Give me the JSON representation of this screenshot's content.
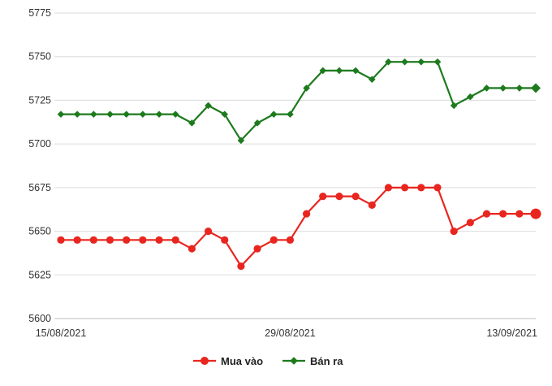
{
  "chart_data": {
    "type": "line",
    "x": [
      "15/08/2021",
      "16/08/2021",
      "17/08/2021",
      "18/08/2021",
      "19/08/2021",
      "20/08/2021",
      "21/08/2021",
      "22/08/2021",
      "23/08/2021",
      "24/08/2021",
      "25/08/2021",
      "26/08/2021",
      "27/08/2021",
      "28/08/2021",
      "29/08/2021",
      "30/08/2021",
      "31/08/2021",
      "01/09/2021",
      "02/09/2021",
      "03/09/2021",
      "04/09/2021",
      "05/09/2021",
      "06/09/2021",
      "07/09/2021",
      "08/09/2021",
      "09/09/2021",
      "10/09/2021",
      "11/09/2021",
      "12/09/2021",
      "13/09/2021"
    ],
    "x_tick_labels": [
      "15/08/2021",
      "29/08/2021",
      "13/09/2021"
    ],
    "y_ticks": [
      5600,
      5625,
      5650,
      5675,
      5700,
      5725,
      5750,
      5775
    ],
    "ylim": [
      5600,
      5775
    ],
    "grid": "horizontal",
    "legend_position": "bottom",
    "series": [
      {
        "name": "Mua vào",
        "color": "#e8261f",
        "marker": "circle",
        "values": [
          5645,
          5645,
          5645,
          5645,
          5645,
          5645,
          5645,
          5645,
          5640,
          5650,
          5645,
          5630,
          5640,
          5645,
          5645,
          5660,
          5670,
          5670,
          5670,
          5665,
          5675,
          5675,
          5675,
          5675,
          5650,
          5655,
          5660,
          5660,
          5660,
          5660
        ]
      },
      {
        "name": "Bán ra",
        "color": "#1d7a1d",
        "marker": "diamond",
        "values": [
          5717,
          5717,
          5717,
          5717,
          5717,
          5717,
          5717,
          5717,
          5712,
          5722,
          5717,
          5702,
          5712,
          5717,
          5717,
          5732,
          5742,
          5742,
          5742,
          5737,
          5747,
          5747,
          5747,
          5747,
          5722,
          5727,
          5732,
          5732,
          5732,
          5732
        ]
      }
    ]
  }
}
